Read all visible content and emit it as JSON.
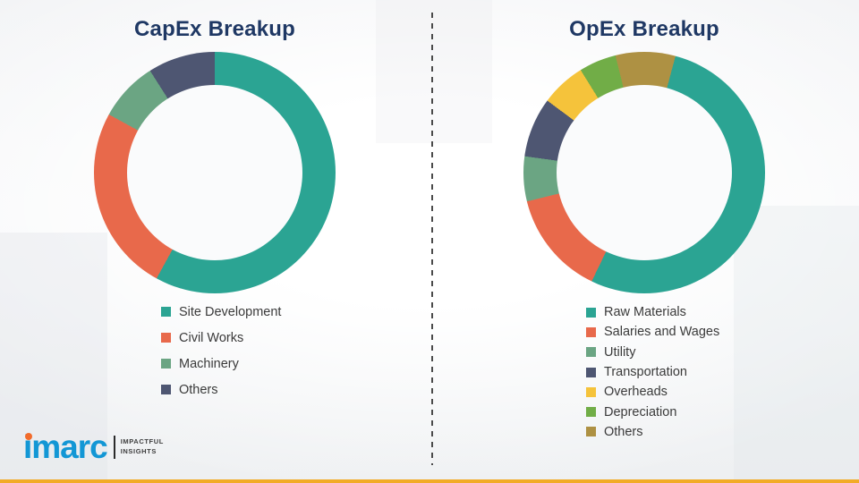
{
  "logo": {
    "brand": "imarc",
    "tagline_line1": "IMPACTFUL",
    "tagline_line2": "INSIGHTS"
  },
  "chart_data": [
    {
      "type": "pie",
      "subtype": "donut",
      "title": "CapEx Breakup",
      "legend_position": "bottom-left",
      "rotation_deg": 0,
      "units": "percent (estimated from arc angles)",
      "segments": [
        {
          "label": "Site Development",
          "value": 58,
          "color": "#2ba493"
        },
        {
          "label": "Civil Works",
          "value": 25,
          "color": "#e8694b"
        },
        {
          "label": "Machinery",
          "value": 8,
          "color": "#6ba583"
        },
        {
          "label": "Others",
          "value": 9,
          "color": "#4e5672"
        }
      ]
    },
    {
      "type": "pie",
      "subtype": "donut",
      "title": "OpEx Breakup",
      "legend_position": "bottom-left",
      "rotation_deg": 15,
      "units": "percent (estimated from arc angles)",
      "segments": [
        {
          "label": "Raw Materials",
          "value": 53,
          "color": "#2ba493"
        },
        {
          "label": "Salaries and Wages",
          "value": 14,
          "color": "#e8694b"
        },
        {
          "label": "Utility",
          "value": 6,
          "color": "#6ba583"
        },
        {
          "label": "Transportation",
          "value": 8,
          "color": "#4e5672"
        },
        {
          "label": "Overheads",
          "value": 6,
          "color": "#f5c33b"
        },
        {
          "label": "Depreciation",
          "value": 5,
          "color": "#71ad47"
        },
        {
          "label": "Others",
          "value": 8,
          "color": "#ae9143"
        }
      ]
    }
  ]
}
